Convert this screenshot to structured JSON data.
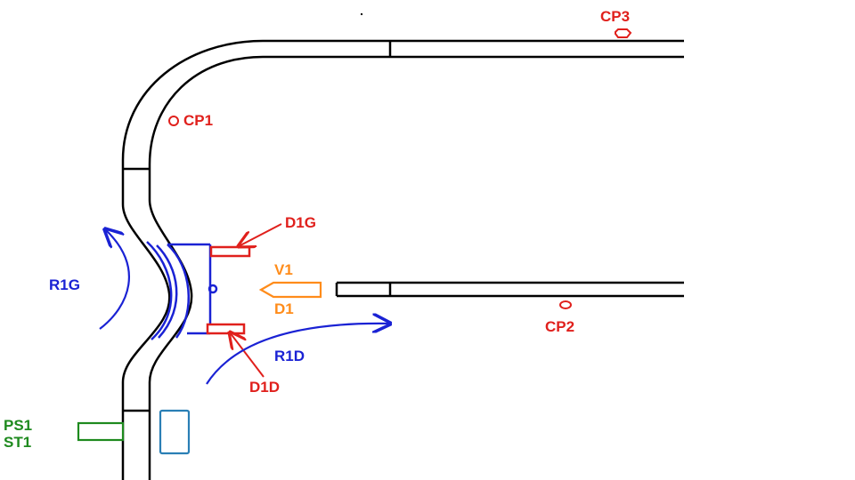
{
  "labels": {
    "cp3": "CP3",
    "cp1": "CP1",
    "cp2": "CP2",
    "d1g": "D1G",
    "d1d": "D1D",
    "v1": "V1",
    "d1": "D1",
    "r1g": "R1G",
    "r1d": "R1D",
    "ps1": "PS1",
    "st1": "ST1"
  },
  "colors": {
    "track": "#000000",
    "control_point": "#e0201c",
    "detector": "#e0201c",
    "route": "#1a22d4",
    "signal": "#ff8c1a",
    "switch_motor": "#1e8a1e",
    "device_box": "#2a7fb5"
  }
}
